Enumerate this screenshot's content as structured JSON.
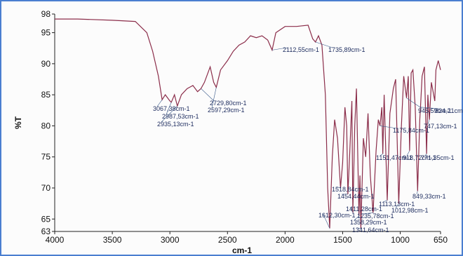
{
  "chart_data": {
    "type": "line",
    "xlabel": "cm-1",
    "ylabel": "%T",
    "color": "#8b2d4a",
    "x": [
      4000,
      3800,
      3500,
      3300,
      3200,
      3150,
      3100,
      3067.38,
      3040,
      3000,
      2987.53,
      2960,
      2935.13,
      2900,
      2850,
      2800,
      2760,
      2729.8,
      2700,
      2650,
      2620,
      2597.29,
      2560,
      2500,
      2450,
      2400,
      2350,
      2300,
      2250,
      2200,
      2150,
      2112.55,
      2080,
      2000,
      1900,
      1800,
      1760,
      1735.89,
      1710,
      1680,
      1650,
      1630,
      1612.3,
      1590,
      1570,
      1545,
      1518.84,
      1500,
      1480,
      1465,
      1454.44,
      1440,
      1420,
      1411.28,
      1395,
      1380,
      1358.29,
      1350,
      1341.64,
      1320,
      1300,
      1280,
      1260,
      1235.78,
      1210,
      1190,
      1175.84,
      1160,
      1151.47,
      1140,
      1113.13,
      1090,
      1060,
      1040,
      1012.98,
      990,
      970,
      945.59,
      930,
      918.72,
      905,
      890,
      870,
      849.33,
      830,
      824.21,
      810,
      790,
      771.35,
      760,
      747.13,
      730,
      700,
      690,
      670,
      650
    ],
    "values": [
      97.2,
      97.2,
      97.0,
      96.8,
      95,
      92,
      88,
      84.2,
      85,
      84,
      83.8,
      85,
      83.2,
      85,
      86,
      86.5,
      85.5,
      86,
      87,
      89.5,
      87,
      86.2,
      89,
      90.5,
      92,
      93,
      93.5,
      94.5,
      94.2,
      94.5,
      93.8,
      92.2,
      95,
      96,
      96,
      96.2,
      94,
      93.5,
      94.5,
      93,
      85,
      70,
      63.5,
      75,
      81,
      78,
      70,
      74,
      83,
      80,
      69,
      75,
      84,
      66,
      80,
      86,
      65.5,
      72,
      63.5,
      78,
      75,
      82,
      72,
      66,
      76,
      81,
      80,
      83,
      75.5,
      85,
      68,
      82,
      86,
      87.5,
      67.5,
      80,
      88,
      84.5,
      88,
      76,
      88.5,
      89,
      83,
      69.5,
      81,
      83,
      88,
      89.5,
      75.5,
      85,
      81,
      87,
      84,
      89,
      90.5,
      89
    ],
    "xlim": [
      4000,
      650
    ],
    "ylim": [
      63,
      98
    ],
    "xticks": [
      4000,
      3500,
      3000,
      2500,
      2000,
      1500,
      1000,
      650
    ],
    "yticks": [
      63,
      65,
      70,
      75,
      80,
      85,
      90,
      95,
      98
    ],
    "annotations": [
      {
        "label": "2112,55cm-1",
        "x": 2112.55,
        "y": 92.2
      },
      {
        "label": "1735,89cm-1",
        "x": 1735.89,
        "y": 93.5
      },
      {
        "label": "3067,38cm-1",
        "x": 3067.38,
        "y": 84.2
      },
      {
        "label": "2987,53cm-1",
        "x": 2987.53,
        "y": 83.8
      },
      {
        "label": "2935,13cm-1",
        "x": 2935.13,
        "y": 83.2
      },
      {
        "label": "2729,80cm-1",
        "x": 2729.8,
        "y": 86
      },
      {
        "label": "2597,29cm-1",
        "x": 2597.29,
        "y": 86.2
      },
      {
        "label": "1175,84cm-1",
        "x": 1175.84,
        "y": 80
      },
      {
        "label": "945,59cm-1",
        "x": 945.59,
        "y": 84.5
      },
      {
        "label": "824,21cm-1",
        "x": 824.21,
        "y": 83
      },
      {
        "label": "747,13cm-1",
        "x": 747.13,
        "y": 81
      },
      {
        "label": "1151,47cm-1",
        "x": 1151.47,
        "y": 75.5
      },
      {
        "label": "918,72cm-1",
        "x": 918.72,
        "y": 76
      },
      {
        "label": "771,35cm-1",
        "x": 771.35,
        "y": 75.5
      },
      {
        "label": "1518,84cm-1",
        "x": 1518.84,
        "y": 70
      },
      {
        "label": "1454,44cm-1",
        "x": 1454.44,
        "y": 69
      },
      {
        "label": "849,33cm-1",
        "x": 849.33,
        "y": 69.5
      },
      {
        "label": "1113,13cm-1",
        "x": 1113.13,
        "y": 68
      },
      {
        "label": "1012,98cm-1",
        "x": 1012.98,
        "y": 67.5
      },
      {
        "label": "1411,28cm-1",
        "x": 1411.28,
        "y": 66
      },
      {
        "label": "1612,30cm-1",
        "x": 1612.3,
        "y": 63.5
      },
      {
        "label": "1235,78cm-1",
        "x": 1235.78,
        "y": 66
      },
      {
        "label": "1358,29cm-1",
        "x": 1358.29,
        "y": 65.5
      },
      {
        "label": "1341,64cm-1",
        "x": 1341.64,
        "y": 63.5
      }
    ]
  }
}
